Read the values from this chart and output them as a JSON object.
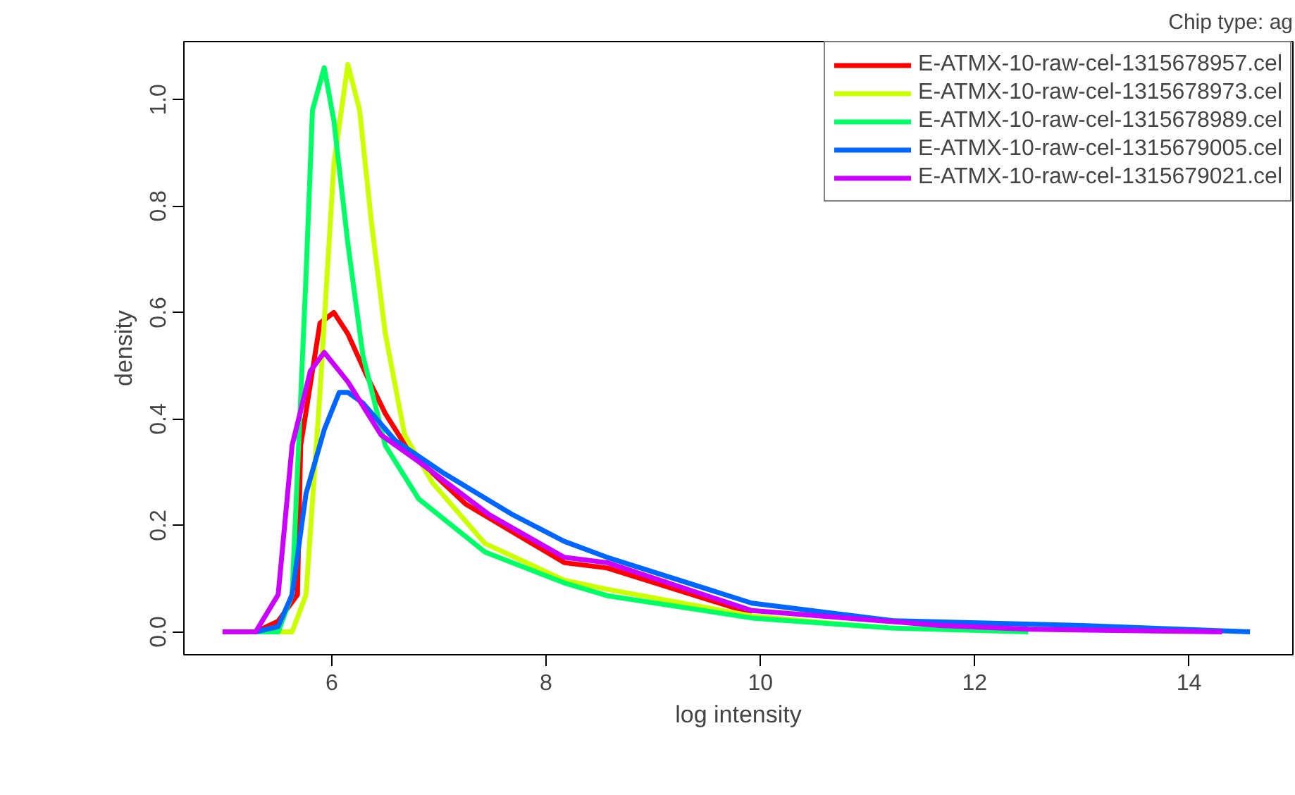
{
  "chart_data": {
    "type": "line",
    "title": "Chip type: ag",
    "xlabel": "log intensity",
    "ylabel": "density",
    "xlim": [
      4.62,
      14.97
    ],
    "ylim": [
      -0.043,
      1.109
    ],
    "xticks": [
      6,
      8,
      10,
      12,
      14
    ],
    "yticks": [
      {
        "value": 0,
        "label": "0.0"
      },
      0.2,
      0.4,
      0.6,
      0.8,
      {
        "value": 1,
        "label": "1.0"
      }
    ],
    "legend": "top right",
    "grid": false,
    "line_style": "solid",
    "series": [
      {
        "name": "E-ATMX-10-raw-cel-1315678957.cel",
        "color": "#ff0000",
        "x": [
          5.0,
          5.29,
          5.5,
          5.68,
          5.71,
          5.89,
          6.02,
          6.15,
          6.33,
          6.5,
          6.72,
          7.25,
          8.17,
          8.57,
          9.92
        ],
        "values": [
          0,
          0,
          0.02,
          0.07,
          0.35,
          0.58,
          0.6,
          0.56,
          0.48,
          0.41,
          0.34,
          0.24,
          0.13,
          0.12,
          0.035
        ]
      },
      {
        "name": "E-ATMX-10-raw-cel-1315678973.cel",
        "color": "#ccff00",
        "x": [
          5.3,
          5.63,
          5.76,
          5.89,
          6.02,
          6.15,
          6.26,
          6.37,
          6.5,
          6.68,
          6.94,
          7.43,
          8.17,
          8.57,
          9.92,
          11.0
        ],
        "values": [
          0,
          0,
          0.07,
          0.45,
          0.88,
          1.066,
          0.98,
          0.77,
          0.56,
          0.37,
          0.28,
          0.166,
          0.097,
          0.08,
          0.03,
          0.01
        ]
      },
      {
        "name": "E-ATMX-10-raw-cel-1315678989.cel",
        "color": "#00ff66",
        "x": [
          5.0,
          5.5,
          5.63,
          5.76,
          5.82,
          5.93,
          6.02,
          6.15,
          6.29,
          6.5,
          6.81,
          7.43,
          8.17,
          8.57,
          9.92,
          11.24,
          12.5
        ],
        "values": [
          0,
          0,
          0.07,
          0.67,
          0.98,
          1.06,
          0.96,
          0.73,
          0.52,
          0.35,
          0.25,
          0.15,
          0.092,
          0.068,
          0.026,
          0.007,
          0
        ]
      },
      {
        "name": "E-ATMX-10-raw-cel-1315679005.cel",
        "color": "#0066ff",
        "x": [
          5.29,
          5.5,
          5.63,
          5.76,
          5.93,
          6.07,
          6.15,
          6.29,
          6.59,
          7.03,
          7.69,
          8.17,
          8.57,
          9.92,
          11.24,
          13.0,
          14.57
        ],
        "values": [
          0,
          0.01,
          0.07,
          0.26,
          0.38,
          0.45,
          0.45,
          0.43,
          0.36,
          0.3,
          0.22,
          0.17,
          0.14,
          0.054,
          0.021,
          0.012,
          0
        ]
      },
      {
        "name": "E-ATMX-10-raw-cel-1315679021.cel",
        "color": "#cc00ff",
        "x": [
          4.98,
          5.29,
          5.5,
          5.63,
          5.8,
          5.93,
          6.15,
          6.46,
          6.81,
          7.47,
          8.17,
          8.57,
          9.92,
          11.68,
          12.5,
          14.31
        ],
        "values": [
          0,
          0,
          0.07,
          0.35,
          0.49,
          0.525,
          0.47,
          0.37,
          0.32,
          0.22,
          0.14,
          0.13,
          0.04,
          0.012,
          0.005,
          0
        ]
      }
    ]
  }
}
